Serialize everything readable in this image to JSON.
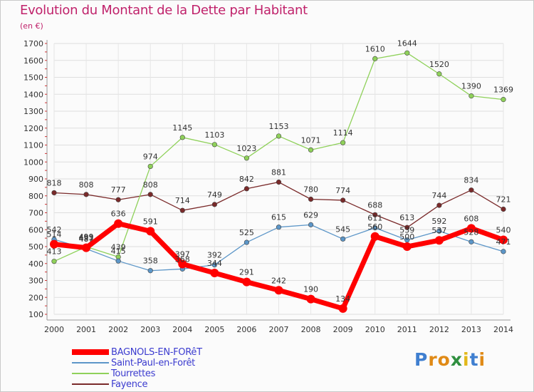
{
  "title": "Evolution du Montant de la Dette par Habitant",
  "unit": "(en €)",
  "brand": {
    "text": "Proxiti",
    "letter_colors": [
      "#3f7fd0",
      "#e08a16",
      "#e08a16",
      "#2f8f3f",
      "#e2b81a",
      "#3f7fd0",
      "#e08a16"
    ]
  },
  "chart_data": {
    "type": "line",
    "x": [
      2000,
      2001,
      2002,
      2003,
      2004,
      2005,
      2006,
      2007,
      2008,
      2009,
      2010,
      2011,
      2012,
      2013,
      2014
    ],
    "ylim": [
      100,
      1700
    ],
    "yticks": [
      100,
      200,
      300,
      400,
      500,
      600,
      700,
      800,
      900,
      1000,
      1100,
      1200,
      1300,
      1400,
      1500,
      1600,
      1700
    ],
    "grid": true,
    "legend_position": "bottom-left",
    "series": [
      {
        "name": "Fayence",
        "color": "#7a2a2a",
        "emphasis": false,
        "values": [
          818,
          808,
          777,
          808,
          714,
          749,
          842,
          881,
          780,
          774,
          688,
          613,
          744,
          834,
          721
        ]
      },
      {
        "name": "Tourrettes",
        "color": "#8fd15a",
        "emphasis": false,
        "values": [
          413,
          499,
          439,
          974,
          1145,
          1103,
          1023,
          1153,
          1071,
          1114,
          1610,
          1644,
          1520,
          1390,
          1369
        ]
      },
      {
        "name": "Saint-Paul-en-Forêt",
        "color": "#5c96c8",
        "emphasis": false,
        "values": [
          542,
          487,
          415,
          358,
          368,
          392,
          525,
          615,
          629,
          545,
          611,
          539,
          592,
          528,
          471
        ]
      },
      {
        "name": "BAGNOLS-EN-FORêT",
        "color": "#ff0000",
        "emphasis": true,
        "values": [
          514,
          493,
          636,
          591,
          397,
          344,
          291,
          242,
          190,
          134,
          560,
          500,
          537,
          608,
          540
        ]
      }
    ],
    "legend_order": [
      "BAGNOLS-EN-FORêT",
      "Saint-Paul-en-Forêt",
      "Tourrettes",
      "Fayence"
    ]
  }
}
